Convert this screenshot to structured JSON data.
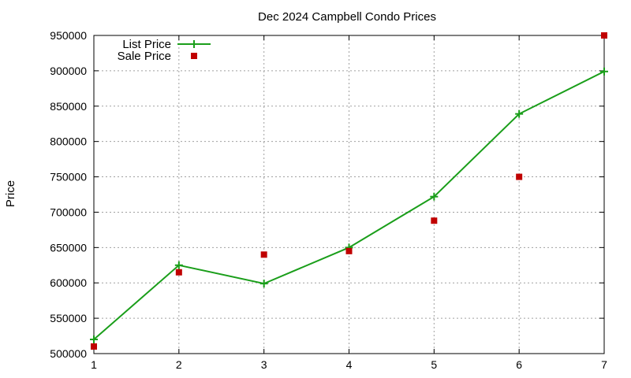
{
  "chart_data": {
    "type": "line",
    "title": "Dec 2024 Campbell Condo Prices",
    "xlabel": "",
    "ylabel": "Price",
    "x": [
      1,
      2,
      3,
      4,
      5,
      6,
      7
    ],
    "xlim": [
      1,
      7
    ],
    "ylim": [
      500000,
      950000
    ],
    "x_ticks": [
      "1",
      "2",
      "3",
      "4",
      "5",
      "6",
      "7"
    ],
    "y_ticks": [
      "500000",
      "550000",
      "600000",
      "650000",
      "700000",
      "750000",
      "800000",
      "850000",
      "900000",
      "950000"
    ],
    "grid": true,
    "legend_position": "top-left",
    "series": [
      {
        "name": "List Price",
        "style": "line+cross",
        "color": "#1a9e1a",
        "values": [
          520000,
          625000,
          599000,
          650000,
          722000,
          839000,
          899000
        ]
      },
      {
        "name": "Sale Price",
        "style": "square-points",
        "color": "#c00000",
        "values": [
          510000,
          615000,
          640000,
          645000,
          688000,
          750000,
          950000
        ]
      }
    ]
  }
}
